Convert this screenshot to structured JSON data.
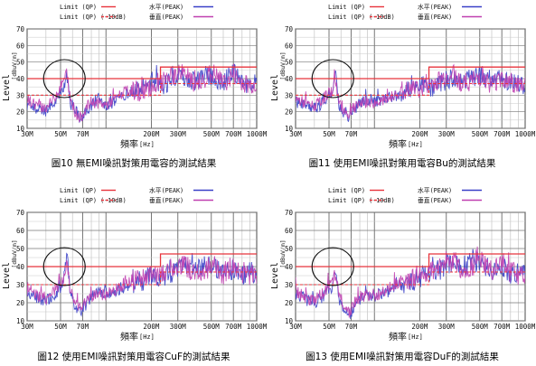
{
  "charts": [
    {
      "caption": "圖10  無EMI噪訊對策用電容的測試結果",
      "chart_data": {
        "type": "line",
        "x_scale": "log",
        "xlim": [
          30,
          1000
        ],
        "ylim": [
          10,
          70
        ],
        "ylabel": "Level",
        "yunit": "[dBuV/m]",
        "xlabel": "頻率",
        "xunit": "[Hz]",
        "x_ticks": [
          30,
          50,
          70,
          100,
          200,
          300,
          500,
          700,
          1000
        ],
        "x_tick_labels": [
          "30M",
          "50M",
          "70M",
          "",
          "200M",
          "300M",
          "500M",
          "700M",
          "1000M"
        ],
        "y_ticks": [
          10,
          20,
          30,
          40,
          50,
          60,
          70
        ],
        "legend": [
          {
            "label": "Limit (QP)",
            "color": "#e8343c",
            "style": "solid"
          },
          {
            "label": "Limit (QP) (-10dB)",
            "color": "#e8343c",
            "style": "dashed"
          },
          {
            "label": "水平(PEAK)",
            "color": "#3a40c8",
            "style": "solid"
          },
          {
            "label": "垂直(PEAK)",
            "color": "#c040b0",
            "style": "solid"
          }
        ],
        "limit_qp": {
          "x": [
            30,
            230,
            230,
            1000
          ],
          "y": [
            40,
            40,
            47,
            47
          ]
        },
        "limit_qp_minus10": {
          "x": [
            30,
            230,
            230,
            1000
          ],
          "y": [
            30,
            30,
            37,
            37
          ]
        },
        "series": [
          {
            "name": "水平(PEAK)",
            "color": "#3a40c8",
            "x": [
              30,
              35,
              40,
              45,
              48,
              52,
              55,
              58,
              62,
              68,
              72,
              80,
              90,
              100,
              120,
              140,
              170,
              200,
              240,
              280,
              330,
              380,
              450,
              520,
              600,
              700,
              800,
              900,
              1000
            ],
            "y": [
              24,
              22,
              20,
              26,
              30,
              34,
              42,
              25,
              22,
              15,
              19,
              24,
              28,
              22,
              27,
              31,
              34,
              38,
              36,
              40,
              42,
              38,
              42,
              40,
              38,
              44,
              36,
              38,
              36
            ]
          },
          {
            "name": "垂直(PEAK)",
            "color": "#c040b0",
            "x": [
              30,
              35,
              40,
              45,
              48,
              52,
              55,
              58,
              62,
              68,
              72,
              80,
              90,
              100,
              120,
              140,
              170,
              200,
              240,
              280,
              330,
              380,
              450,
              520,
              600,
              700,
              800,
              900,
              1000
            ],
            "y": [
              27,
              24,
              22,
              28,
              32,
              38,
              44,
              27,
              20,
              16,
              21,
              26,
              25,
              24,
              29,
              33,
              32,
              35,
              38,
              42,
              45,
              36,
              40,
              43,
              37,
              42,
              38,
              36,
              37
            ]
          }
        ]
      }
    },
    {
      "caption": "圖11  使用EMI噪訊對策用電容Bu的測試結果",
      "chart_data": {
        "type": "line",
        "x_scale": "log",
        "xlim": [
          30,
          1000
        ],
        "ylim": [
          10,
          70
        ],
        "ylabel": "Level",
        "yunit": "[dBuV/m]",
        "xlabel": "頻率",
        "xunit": "[Hz]",
        "x_ticks": [
          30,
          50,
          70,
          100,
          200,
          300,
          500,
          700,
          1000
        ],
        "x_tick_labels": [
          "30M",
          "50M",
          "70M",
          "",
          "200M",
          "300M",
          "500M",
          "700M",
          "1000M"
        ],
        "y_ticks": [
          10,
          20,
          30,
          40,
          50,
          60,
          70
        ],
        "legend": [
          {
            "label": "Limit (QP)",
            "color": "#e8343c",
            "style": "solid"
          },
          {
            "label": "Limit (QP) (-10dB)",
            "color": "#e8343c",
            "style": "dashed"
          },
          {
            "label": "水平(PEAK)",
            "color": "#3a40c8",
            "style": "solid"
          },
          {
            "label": "垂直(PEAK)",
            "color": "#c040b0",
            "style": "solid"
          }
        ],
        "limit_qp": {
          "x": [
            30,
            230,
            230,
            1000
          ],
          "y": [
            40,
            40,
            47,
            47
          ]
        },
        "limit_qp_minus10": {
          "x": [
            30,
            230,
            230,
            1000
          ],
          "y": [
            30,
            30,
            37,
            37
          ]
        },
        "series": [
          {
            "name": "水平(PEAK)",
            "color": "#3a40c8",
            "x": [
              30,
              35,
              40,
              45,
              48,
              52,
              55,
              58,
              62,
              68,
              72,
              80,
              90,
              100,
              120,
              140,
              170,
              200,
              240,
              280,
              330,
              380,
              450,
              520,
              600,
              700,
              800,
              900,
              1000
            ],
            "y": [
              26,
              24,
              22,
              25,
              28,
              30,
              44,
              24,
              20,
              17,
              20,
              25,
              27,
              26,
              28,
              30,
              33,
              36,
              35,
              38,
              40,
              39,
              41,
              42,
              38,
              40,
              37,
              37,
              36
            ]
          },
          {
            "name": "垂直(PEAK)",
            "color": "#c040b0",
            "x": [
              30,
              35,
              40,
              45,
              48,
              52,
              55,
              58,
              62,
              68,
              72,
              80,
              90,
              100,
              120,
              140,
              170,
              200,
              240,
              280,
              330,
              380,
              450,
              520,
              600,
              700,
              800,
              900,
              1000
            ],
            "y": [
              28,
              25,
              23,
              27,
              30,
              32,
              40,
              26,
              22,
              18,
              22,
              24,
              26,
              25,
              27,
              31,
              33,
              34,
              37,
              40,
              44,
              37,
              39,
              42,
              36,
              41,
              38,
              36,
              37
            ]
          }
        ]
      }
    },
    {
      "caption": "圖12  使用EMI噪訊對策用電容CuF的測試結果",
      "chart_data": {
        "type": "line",
        "x_scale": "log",
        "xlim": [
          30,
          1000
        ],
        "ylim": [
          10,
          70
        ],
        "ylabel": "Level",
        "yunit": "[dBuV/m]",
        "xlabel": "頻率",
        "xunit": "[Hz]",
        "x_ticks": [
          30,
          50,
          70,
          100,
          200,
          300,
          500,
          700,
          1000
        ],
        "x_tick_labels": [
          "30M",
          "50M",
          "70M",
          "",
          "200M",
          "300M",
          "500M",
          "700M",
          "1000M"
        ],
        "y_ticks": [
          10,
          20,
          30,
          40,
          50,
          60,
          70
        ],
        "legend": [
          {
            "label": "Limit (QP)",
            "color": "#e8343c",
            "style": "solid"
          },
          {
            "label": "Limit (QP) (-10dB)",
            "color": "#e8343c",
            "style": "dashed"
          },
          {
            "label": "水平(PEAK)",
            "color": "#3a40c8",
            "style": "solid"
          },
          {
            "label": "垂直(PEAK)",
            "color": "#c040b0",
            "style": "solid"
          }
        ],
        "limit_qp": {
          "x": [
            30,
            230,
            230,
            1000
          ],
          "y": [
            40,
            40,
            47,
            47
          ]
        },
        "limit_qp_minus10": {
          "x": [
            30,
            230,
            230,
            1000
          ],
          "y": [
            30,
            30,
            37,
            37
          ]
        },
        "series": [
          {
            "name": "水平(PEAK)",
            "color": "#3a40c8",
            "x": [
              30,
              35,
              40,
              45,
              48,
              52,
              55,
              58,
              62,
              68,
              72,
              80,
              90,
              100,
              120,
              140,
              170,
              200,
              240,
              280,
              330,
              380,
              450,
              520,
              600,
              700,
              800,
              900,
              1000
            ],
            "y": [
              25,
              23,
              21,
              24,
              27,
              29,
              48,
              25,
              19,
              14,
              18,
              23,
              26,
              25,
              27,
              30,
              32,
              35,
              34,
              37,
              40,
              38,
              40,
              41,
              37,
              39,
              36,
              37,
              36
            ]
          },
          {
            "name": "垂直(PEAK)",
            "color": "#c040b0",
            "x": [
              30,
              35,
              40,
              45,
              48,
              52,
              55,
              58,
              62,
              68,
              72,
              80,
              90,
              100,
              120,
              140,
              170,
              200,
              240,
              280,
              330,
              380,
              450,
              520,
              600,
              700,
              800,
              900,
              1000
            ],
            "y": [
              27,
              24,
              22,
              26,
              29,
              31,
              42,
              26,
              21,
              16,
              20,
              24,
              25,
              24,
              28,
              32,
              33,
              35,
              37,
              39,
              42,
              36,
              38,
              41,
              35,
              40,
              37,
              35,
              36
            ]
          }
        ]
      }
    },
    {
      "caption": "圖13  使用EMI噪訊對策用電容DuF的測試結果",
      "chart_data": {
        "type": "line",
        "x_scale": "log",
        "xlim": [
          30,
          1000
        ],
        "ylim": [
          10,
          70
        ],
        "ylabel": "Level",
        "yunit": "[dBuV/m]",
        "xlabel": "頻率",
        "xunit": "[Hz]",
        "x_ticks": [
          30,
          50,
          70,
          100,
          200,
          300,
          500,
          700,
          1000
        ],
        "x_tick_labels": [
          "30M",
          "50M",
          "70M",
          "",
          "200M",
          "300M",
          "500M",
          "700M",
          "1000M"
        ],
        "y_ticks": [
          10,
          20,
          30,
          40,
          50,
          60,
          70
        ],
        "legend": [
          {
            "label": "Limit (QP)",
            "color": "#e8343c",
            "style": "solid"
          },
          {
            "label": "Limit (QP) (-10dB)",
            "color": "#e8343c",
            "style": "dashed"
          },
          {
            "label": "水平(PEAK)",
            "color": "#3a40c8",
            "style": "solid"
          },
          {
            "label": "垂直(PEAK)",
            "color": "#c040b0",
            "style": "solid"
          }
        ],
        "limit_qp": {
          "x": [
            30,
            230,
            230,
            1000
          ],
          "y": [
            40,
            40,
            47,
            47
          ]
        },
        "limit_qp_minus10": {
          "x": [
            30,
            230,
            230,
            1000
          ],
          "y": [
            30,
            30,
            37,
            37
          ]
        },
        "series": [
          {
            "name": "水平(PEAK)",
            "color": "#3a40c8",
            "x": [
              30,
              35,
              40,
              45,
              48,
              52,
              55,
              58,
              62,
              68,
              72,
              80,
              90,
              100,
              120,
              140,
              170,
              200,
              240,
              280,
              330,
              380,
              450,
              520,
              600,
              700,
              800,
              900,
              1000
            ],
            "y": [
              24,
              22,
              20,
              23,
              26,
              28,
              38,
              23,
              18,
              13,
              17,
              22,
              25,
              24,
              26,
              29,
              31,
              34,
              36,
              39,
              42,
              40,
              43,
              42,
              38,
              40,
              36,
              37,
              35
            ]
          },
          {
            "name": "垂直(PEAK)",
            "color": "#c040b0",
            "x": [
              30,
              35,
              40,
              45,
              48,
              52,
              55,
              58,
              62,
              68,
              72,
              80,
              90,
              100,
              120,
              140,
              170,
              200,
              240,
              280,
              330,
              380,
              450,
              520,
              600,
              700,
              800,
              900,
              1000
            ],
            "y": [
              26,
              23,
              21,
              25,
              28,
              30,
              36,
              25,
              20,
              15,
              19,
              23,
              24,
              23,
              27,
              31,
              33,
              36,
              38,
              41,
              44,
              38,
              41,
              43,
              37,
              41,
              37,
              36,
              36
            ]
          }
        ]
      }
    }
  ]
}
